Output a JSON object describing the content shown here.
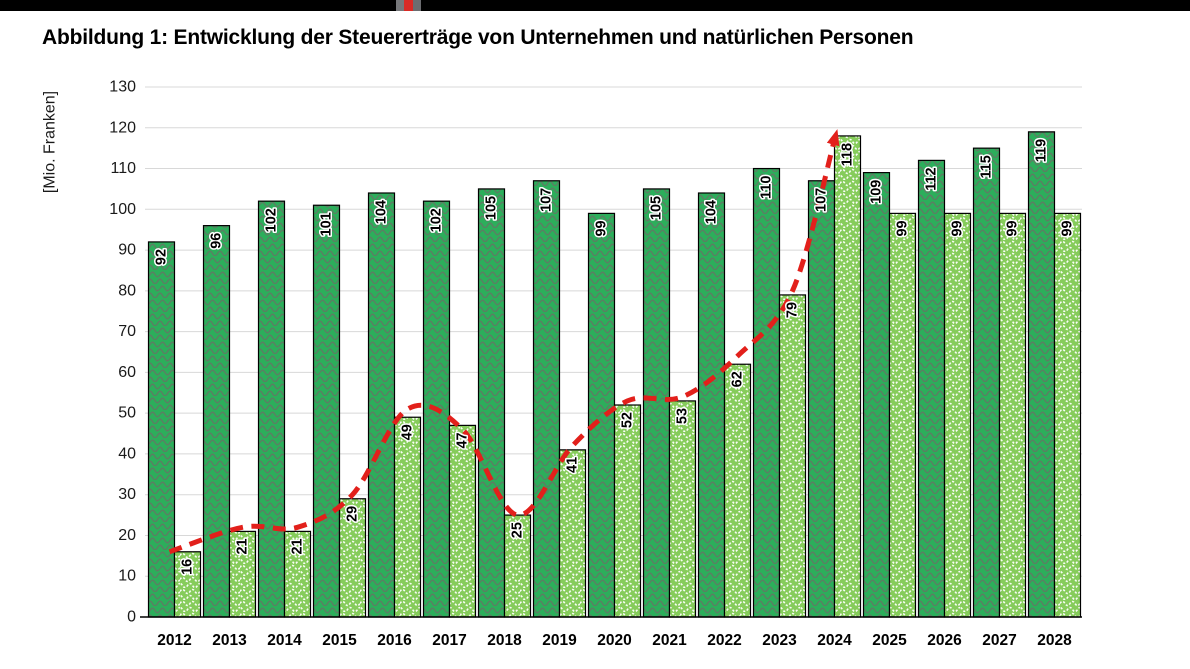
{
  "header": {
    "strip_color": "#000000",
    "logo_fragment_colors": [
      "#77787b",
      "#d92b26",
      "#6c6d70"
    ]
  },
  "title": "Abbildung 1: Entwicklung der Steuererträge von Unternehmen und natürlichen Personen",
  "chart_data": {
    "type": "bar",
    "title": "Abbildung 1: Entwicklung der Steuererträge von Unternehmen und natürlichen Personen",
    "ylabel": "[Mio. Franken]",
    "ylim": [
      0,
      130
    ],
    "ytick_step": 10,
    "grid": "horizontal",
    "legend": "none",
    "categories": [
      "2012",
      "2013",
      "2014",
      "2015",
      "2016",
      "2017",
      "2018",
      "2019",
      "2020",
      "2021",
      "2022",
      "2023",
      "2024",
      "2025",
      "2026",
      "2027",
      "2028"
    ],
    "series": [
      {
        "name": "dark-green-bars",
        "color": "#2cae5b",
        "pattern": "gray-wavy-lines",
        "values": [
          92,
          96,
          102,
          101,
          104,
          102,
          105,
          107,
          99,
          105,
          104,
          110,
          107,
          109,
          112,
          115,
          119
        ]
      },
      {
        "name": "light-green-bars",
        "color": "#86cc5b",
        "pattern": "white-dotted-waves",
        "values": [
          16,
          21,
          21,
          29,
          49,
          47,
          25,
          41,
          52,
          53,
          62,
          79,
          118,
          99,
          99,
          99,
          99
        ]
      }
    ],
    "bar_value_labels": "rotated-90-bold-black-with-white-halo",
    "trend_line": {
      "color": "#e2201b",
      "style": "dashed",
      "width": 5,
      "arrow_end": true,
      "points": [
        {
          "year": "2012",
          "value": 16
        },
        {
          "year": "2013",
          "value": 22
        },
        {
          "year": "2014",
          "value": 22
        },
        {
          "year": "2015",
          "value": 30
        },
        {
          "year": "2016",
          "value": 51
        },
        {
          "year": "2017",
          "value": 46
        },
        {
          "year": "2018",
          "value": 25
        },
        {
          "year": "2019",
          "value": 42
        },
        {
          "year": "2020",
          "value": 53
        },
        {
          "year": "2021",
          "value": 54
        },
        {
          "year": "2022",
          "value": 64
        },
        {
          "year": "2023",
          "value": 80
        },
        {
          "year": "2024",
          "value": 118
        }
      ]
    }
  }
}
